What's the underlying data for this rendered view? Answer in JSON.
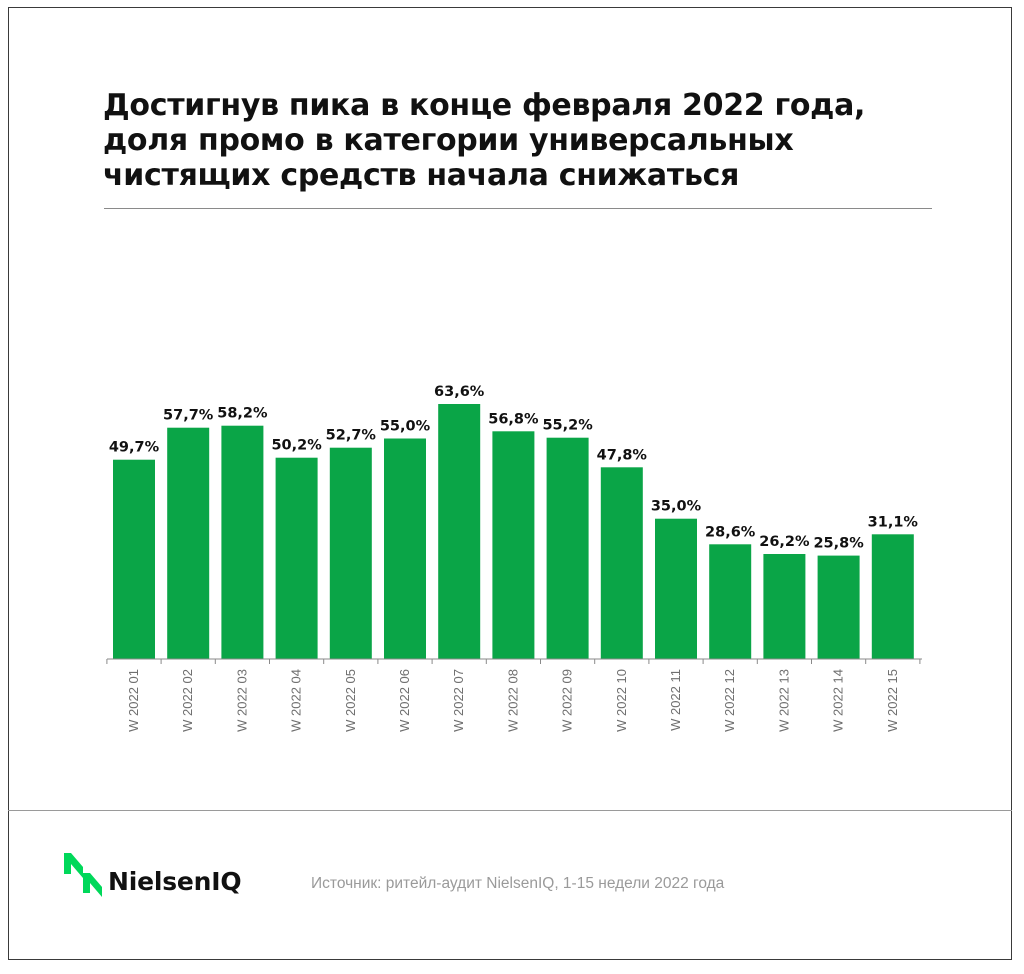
{
  "title_lines": [
    "Достигнув пика в конце февраля 2022 года,",
    "доля промо в категории универсальных",
    "чистящих средств начала снижаться"
  ],
  "chart_data": {
    "type": "bar",
    "title": "Достигнув пика в конце февраля 2022 года, доля промо в категории универсальных чистящих средств начала снижаться",
    "categories": [
      "W 2022 01",
      "W 2022 02",
      "W 2022 03",
      "W 2022 04",
      "W 2022 05",
      "W 2022 06",
      "W 2022 07",
      "W 2022 08",
      "W 2022 09",
      "W 2022 10",
      "W 2022 11",
      "W 2022 12",
      "W 2022 13",
      "W 2022 14",
      "W 2022 15"
    ],
    "values": [
      49.7,
      57.7,
      58.2,
      50.2,
      52.7,
      55.0,
      63.6,
      56.8,
      55.2,
      47.8,
      35.0,
      28.6,
      26.2,
      25.8,
      31.1
    ],
    "value_labels": [
      "49,7%",
      "57,7%",
      "58,2%",
      "50,2%",
      "52,7%",
      "55,0%",
      "63,6%",
      "56,8%",
      "55,2%",
      "47,8%",
      "35,0%",
      "28,6%",
      "26,2%",
      "25,8%",
      "31,1%"
    ],
    "xlabel": "",
    "ylabel": "",
    "ylim": [
      0,
      63.6
    ],
    "grid": false,
    "legend": "none",
    "bar_color": "#0aa547"
  },
  "footer": {
    "brand": "NielsenIQ",
    "source": "Источник: ритейл-аудит NielsenIQ, 1-15 недели 2022 года"
  },
  "colors": {
    "accent": "#0aa547",
    "logo_green": "#00d85a",
    "text": "#111111",
    "muted": "#9a9a9a"
  },
  "icons": {
    "logo": "nielseniq-logo-icon"
  }
}
